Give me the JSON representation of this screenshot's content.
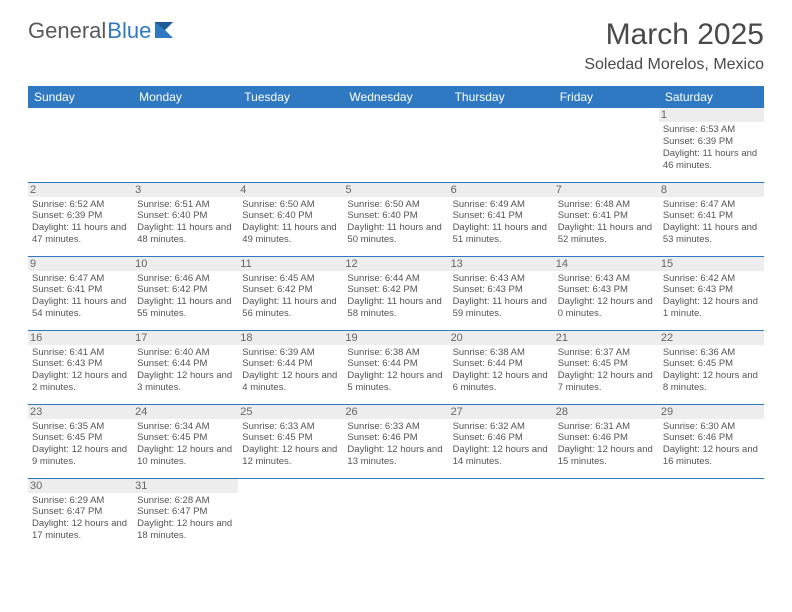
{
  "logo": {
    "text_a": "General",
    "text_b": "Blue"
  },
  "header": {
    "month": "March 2025",
    "location": "Soledad Morelos, Mexico"
  },
  "colors": {
    "header_bg": "#2e79c1",
    "header_fg": "#ffffff",
    "daynum_bg": "#ededed",
    "rule": "#2e79c1",
    "text": "#555555"
  },
  "weekdays": [
    "Sunday",
    "Monday",
    "Tuesday",
    "Wednesday",
    "Thursday",
    "Friday",
    "Saturday"
  ],
  "weeks": [
    [
      {
        "n": "",
        "sr": "",
        "ss": "",
        "dl": ""
      },
      {
        "n": "",
        "sr": "",
        "ss": "",
        "dl": ""
      },
      {
        "n": "",
        "sr": "",
        "ss": "",
        "dl": ""
      },
      {
        "n": "",
        "sr": "",
        "ss": "",
        "dl": ""
      },
      {
        "n": "",
        "sr": "",
        "ss": "",
        "dl": ""
      },
      {
        "n": "",
        "sr": "",
        "ss": "",
        "dl": ""
      },
      {
        "n": "1",
        "sr": "Sunrise: 6:53 AM",
        "ss": "Sunset: 6:39 PM",
        "dl": "Daylight: 11 hours and 46 minutes."
      }
    ],
    [
      {
        "n": "2",
        "sr": "Sunrise: 6:52 AM",
        "ss": "Sunset: 6:39 PM",
        "dl": "Daylight: 11 hours and 47 minutes."
      },
      {
        "n": "3",
        "sr": "Sunrise: 6:51 AM",
        "ss": "Sunset: 6:40 PM",
        "dl": "Daylight: 11 hours and 48 minutes."
      },
      {
        "n": "4",
        "sr": "Sunrise: 6:50 AM",
        "ss": "Sunset: 6:40 PM",
        "dl": "Daylight: 11 hours and 49 minutes."
      },
      {
        "n": "5",
        "sr": "Sunrise: 6:50 AM",
        "ss": "Sunset: 6:40 PM",
        "dl": "Daylight: 11 hours and 50 minutes."
      },
      {
        "n": "6",
        "sr": "Sunrise: 6:49 AM",
        "ss": "Sunset: 6:41 PM",
        "dl": "Daylight: 11 hours and 51 minutes."
      },
      {
        "n": "7",
        "sr": "Sunrise: 6:48 AM",
        "ss": "Sunset: 6:41 PM",
        "dl": "Daylight: 11 hours and 52 minutes."
      },
      {
        "n": "8",
        "sr": "Sunrise: 6:47 AM",
        "ss": "Sunset: 6:41 PM",
        "dl": "Daylight: 11 hours and 53 minutes."
      }
    ],
    [
      {
        "n": "9",
        "sr": "Sunrise: 6:47 AM",
        "ss": "Sunset: 6:41 PM",
        "dl": "Daylight: 11 hours and 54 minutes."
      },
      {
        "n": "10",
        "sr": "Sunrise: 6:46 AM",
        "ss": "Sunset: 6:42 PM",
        "dl": "Daylight: 11 hours and 55 minutes."
      },
      {
        "n": "11",
        "sr": "Sunrise: 6:45 AM",
        "ss": "Sunset: 6:42 PM",
        "dl": "Daylight: 11 hours and 56 minutes."
      },
      {
        "n": "12",
        "sr": "Sunrise: 6:44 AM",
        "ss": "Sunset: 6:42 PM",
        "dl": "Daylight: 11 hours and 58 minutes."
      },
      {
        "n": "13",
        "sr": "Sunrise: 6:43 AM",
        "ss": "Sunset: 6:43 PM",
        "dl": "Daylight: 11 hours and 59 minutes."
      },
      {
        "n": "14",
        "sr": "Sunrise: 6:43 AM",
        "ss": "Sunset: 6:43 PM",
        "dl": "Daylight: 12 hours and 0 minutes."
      },
      {
        "n": "15",
        "sr": "Sunrise: 6:42 AM",
        "ss": "Sunset: 6:43 PM",
        "dl": "Daylight: 12 hours and 1 minute."
      }
    ],
    [
      {
        "n": "16",
        "sr": "Sunrise: 6:41 AM",
        "ss": "Sunset: 6:43 PM",
        "dl": "Daylight: 12 hours and 2 minutes."
      },
      {
        "n": "17",
        "sr": "Sunrise: 6:40 AM",
        "ss": "Sunset: 6:44 PM",
        "dl": "Daylight: 12 hours and 3 minutes."
      },
      {
        "n": "18",
        "sr": "Sunrise: 6:39 AM",
        "ss": "Sunset: 6:44 PM",
        "dl": "Daylight: 12 hours and 4 minutes."
      },
      {
        "n": "19",
        "sr": "Sunrise: 6:38 AM",
        "ss": "Sunset: 6:44 PM",
        "dl": "Daylight: 12 hours and 5 minutes."
      },
      {
        "n": "20",
        "sr": "Sunrise: 6:38 AM",
        "ss": "Sunset: 6:44 PM",
        "dl": "Daylight: 12 hours and 6 minutes."
      },
      {
        "n": "21",
        "sr": "Sunrise: 6:37 AM",
        "ss": "Sunset: 6:45 PM",
        "dl": "Daylight: 12 hours and 7 minutes."
      },
      {
        "n": "22",
        "sr": "Sunrise: 6:36 AM",
        "ss": "Sunset: 6:45 PM",
        "dl": "Daylight: 12 hours and 8 minutes."
      }
    ],
    [
      {
        "n": "23",
        "sr": "Sunrise: 6:35 AM",
        "ss": "Sunset: 6:45 PM",
        "dl": "Daylight: 12 hours and 9 minutes."
      },
      {
        "n": "24",
        "sr": "Sunrise: 6:34 AM",
        "ss": "Sunset: 6:45 PM",
        "dl": "Daylight: 12 hours and 10 minutes."
      },
      {
        "n": "25",
        "sr": "Sunrise: 6:33 AM",
        "ss": "Sunset: 6:45 PM",
        "dl": "Daylight: 12 hours and 12 minutes."
      },
      {
        "n": "26",
        "sr": "Sunrise: 6:33 AM",
        "ss": "Sunset: 6:46 PM",
        "dl": "Daylight: 12 hours and 13 minutes."
      },
      {
        "n": "27",
        "sr": "Sunrise: 6:32 AM",
        "ss": "Sunset: 6:46 PM",
        "dl": "Daylight: 12 hours and 14 minutes."
      },
      {
        "n": "28",
        "sr": "Sunrise: 6:31 AM",
        "ss": "Sunset: 6:46 PM",
        "dl": "Daylight: 12 hours and 15 minutes."
      },
      {
        "n": "29",
        "sr": "Sunrise: 6:30 AM",
        "ss": "Sunset: 6:46 PM",
        "dl": "Daylight: 12 hours and 16 minutes."
      }
    ],
    [
      {
        "n": "30",
        "sr": "Sunrise: 6:29 AM",
        "ss": "Sunset: 6:47 PM",
        "dl": "Daylight: 12 hours and 17 minutes."
      },
      {
        "n": "31",
        "sr": "Sunrise: 6:28 AM",
        "ss": "Sunset: 6:47 PM",
        "dl": "Daylight: 12 hours and 18 minutes."
      },
      {
        "n": "",
        "sr": "",
        "ss": "",
        "dl": ""
      },
      {
        "n": "",
        "sr": "",
        "ss": "",
        "dl": ""
      },
      {
        "n": "",
        "sr": "",
        "ss": "",
        "dl": ""
      },
      {
        "n": "",
        "sr": "",
        "ss": "",
        "dl": ""
      },
      {
        "n": "",
        "sr": "",
        "ss": "",
        "dl": ""
      }
    ]
  ]
}
